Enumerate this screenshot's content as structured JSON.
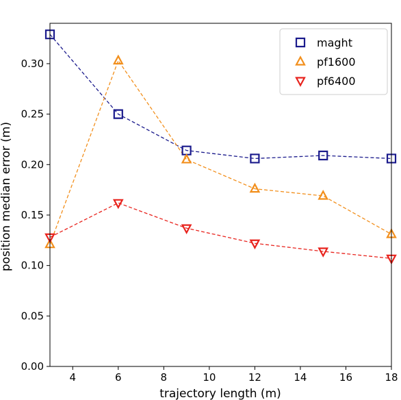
{
  "chart_data": {
    "type": "line",
    "title": "",
    "xlabel": "trajectory length (m)",
    "ylabel": "position median error (m)",
    "xlim": [
      3,
      18
    ],
    "ylim": [
      0,
      0.34
    ],
    "xticks": [
      4,
      6,
      8,
      10,
      12,
      14,
      16,
      18
    ],
    "yticks": [
      0.0,
      0.05,
      0.1,
      0.15,
      0.2,
      0.25,
      0.3
    ],
    "ytick_labels": [
      "0.00",
      "0.05",
      "0.10",
      "0.15",
      "0.20",
      "0.25",
      "0.30"
    ],
    "xtick_labels": [
      "4",
      "6",
      "8",
      "10",
      "12",
      "14",
      "16",
      "18"
    ],
    "grid": false,
    "legend_position": "top-right",
    "x": [
      3,
      6,
      9,
      12,
      15,
      18
    ],
    "series": [
      {
        "name": "maght",
        "values": [
          0.329,
          0.25,
          0.214,
          0.206,
          0.209,
          0.206
        ],
        "color": "#1a1a8c",
        "marker": "square",
        "linestyle": "dashed"
      },
      {
        "name": "pf1600",
        "values": [
          0.121,
          0.303,
          0.205,
          0.176,
          0.169,
          0.131
        ],
        "color": "#f28f1c",
        "marker": "triangle-up",
        "linestyle": "dashed"
      },
      {
        "name": "pf6400",
        "values": [
          0.128,
          0.162,
          0.137,
          0.122,
          0.114,
          0.107
        ],
        "color": "#e8231d",
        "marker": "triangle-down",
        "linestyle": "dashed"
      }
    ]
  }
}
